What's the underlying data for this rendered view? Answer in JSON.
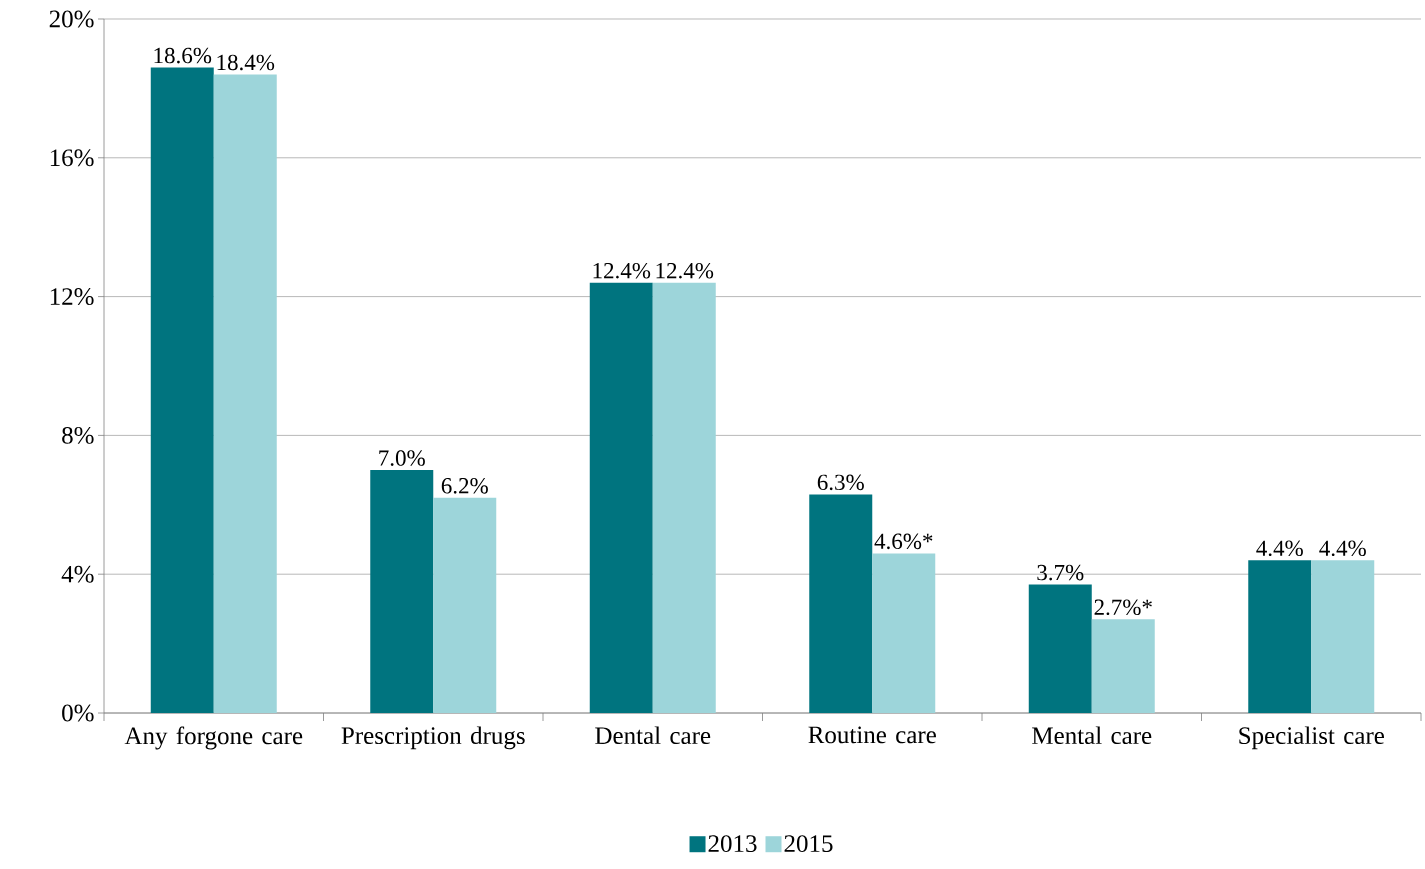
{
  "chart_data": {
    "type": "bar",
    "categories": [
      "Any forgone care",
      "Prescription drugs",
      "Dental care",
      "Routine care",
      "Mental care",
      "Specialist care"
    ],
    "series": [
      {
        "name": "2013",
        "color": "#00747f",
        "values": [
          18.6,
          7.0,
          12.4,
          6.3,
          3.7,
          4.4
        ],
        "value_labels": [
          "18.6%",
          "7.0%",
          "12.4%",
          "6.3%",
          "3.7%",
          "4.4%"
        ]
      },
      {
        "name": "2015",
        "color": "#9dd5da",
        "values": [
          18.4,
          6.2,
          12.4,
          4.6,
          2.7,
          4.4
        ],
        "value_labels": [
          "18.4%",
          "6.2%",
          "12.4%",
          "4.6%*",
          "2.7%*",
          "4.4%"
        ]
      }
    ],
    "ylim": [
      0,
      20
    ],
    "yticks": [
      {
        "value": 0,
        "label": "0%"
      },
      {
        "value": 4,
        "label": "4%"
      },
      {
        "value": 8,
        "label": "8%"
      },
      {
        "value": 12,
        "label": "12%"
      },
      {
        "value": 16,
        "label": "16%"
      },
      {
        "value": 20,
        "label": "20%"
      }
    ],
    "grid": "y",
    "legend": "bottom"
  }
}
